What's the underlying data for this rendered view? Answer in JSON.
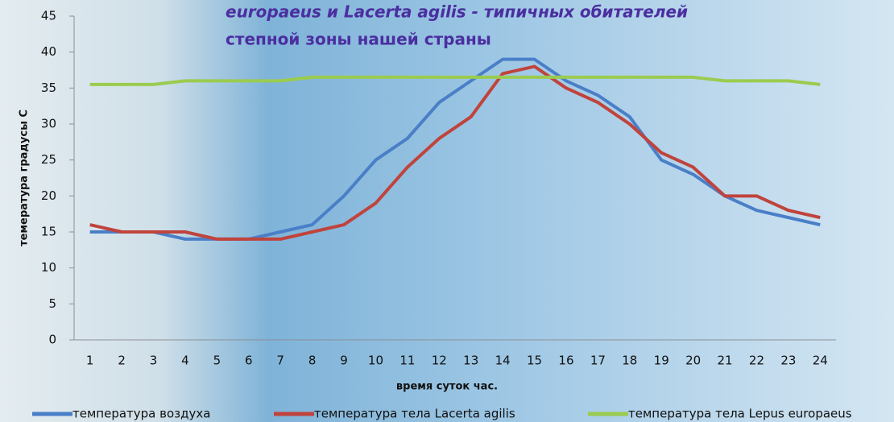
{
  "chart_data": {
    "type": "line",
    "title": [
      "europaeus и Lacerta agilis - типичных обитателей",
      "степной зоны нашей страны"
    ],
    "x_label": "время суток час.",
    "y_label": "темература градусы С",
    "categories": [
      1,
      2,
      3,
      4,
      5,
      6,
      7,
      8,
      9,
      10,
      11,
      12,
      13,
      14,
      15,
      16,
      17,
      18,
      19,
      20,
      21,
      22,
      23,
      24
    ],
    "ylim": [
      0,
      45
    ],
    "yticks": [
      0,
      5,
      10,
      15,
      20,
      25,
      30,
      35,
      40,
      45
    ],
    "grid": false,
    "legend": "bottom",
    "series": [
      {
        "name": "температура воздуха",
        "color": "#4a7fc8",
        "values": [
          15,
          15,
          15,
          14,
          14,
          14,
          15,
          16,
          20,
          25,
          28,
          33,
          36,
          39,
          39,
          36,
          34,
          31,
          25,
          23,
          20,
          18,
          17,
          16
        ]
      },
      {
        "name": "температура тела Lacerta agilis",
        "color": "#c0433c",
        "values": [
          16,
          15,
          15,
          15,
          14,
          14,
          14,
          15,
          16,
          19,
          24,
          28,
          31,
          37,
          38,
          35,
          33,
          30,
          26,
          24,
          20,
          20,
          18,
          17
        ]
      },
      {
        "name": "температура тела Lepus europaeus",
        "color": "#9bcb4f",
        "values": [
          35.5,
          35.5,
          35.5,
          36,
          36,
          36,
          36,
          36.5,
          36.5,
          36.5,
          36.5,
          36.5,
          36.5,
          36.5,
          36.5,
          36.5,
          36.5,
          36.5,
          36.5,
          36.5,
          36,
          36,
          36,
          35.5
        ]
      }
    ]
  }
}
